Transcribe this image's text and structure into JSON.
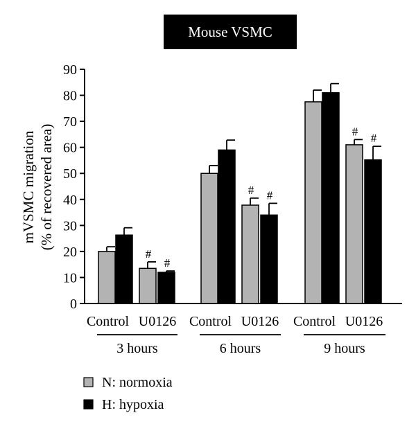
{
  "chart_data": {
    "type": "bar",
    "title": "Mouse VSMC",
    "ylabel_line1": "mVSMC migration",
    "ylabel_line2": "(% of recovered area)",
    "ylim": [
      0,
      90
    ],
    "yticks": [
      "0",
      "10",
      "20",
      "30",
      "40",
      "50",
      "60",
      "70",
      "80",
      "90"
    ],
    "groups": [
      {
        "label": "3 hours",
        "subcategories": [
          "Control",
          "U0126"
        ],
        "bars": [
          {
            "series": "N",
            "sub": "Control",
            "value": 20,
            "error": 1.8,
            "mark": ""
          },
          {
            "series": "H",
            "sub": "Control",
            "value": 26.3,
            "error": 2.8,
            "mark": ""
          },
          {
            "series": "N",
            "sub": "U0126",
            "value": 13.5,
            "error": 2.5,
            "mark": "#"
          },
          {
            "series": "H",
            "sub": "U0126",
            "value": 12,
            "error": 0.5,
            "mark": "#"
          }
        ]
      },
      {
        "label": "6 hours",
        "subcategories": [
          "Control",
          "U0126"
        ],
        "bars": [
          {
            "series": "N",
            "sub": "Control",
            "value": 50,
            "error": 3,
            "mark": ""
          },
          {
            "series": "H",
            "sub": "Control",
            "value": 59,
            "error": 3.8,
            "mark": ""
          },
          {
            "series": "N",
            "sub": "U0126",
            "value": 37.8,
            "error": 2.7,
            "mark": "#"
          },
          {
            "series": "H",
            "sub": "U0126",
            "value": 34,
            "error": 4.5,
            "mark": "#"
          }
        ]
      },
      {
        "label": "9 hours",
        "subcategories": [
          "Control",
          "U0126"
        ],
        "bars": [
          {
            "series": "N",
            "sub": "Control",
            "value": 77.5,
            "error": 4.5,
            "mark": ""
          },
          {
            "series": "H",
            "sub": "Control",
            "value": 81,
            "error": 3.5,
            "mark": ""
          },
          {
            "series": "N",
            "sub": "U0126",
            "value": 61,
            "error": 2,
            "mark": "#"
          },
          {
            "series": "H",
            "sub": "U0126",
            "value": 55.2,
            "error": 5.2,
            "mark": "#"
          }
        ]
      }
    ],
    "series": [
      {
        "key": "N",
        "name": "N: normoxia",
        "color": "#b3b3b3"
      },
      {
        "key": "H",
        "name": "H: hypoxia",
        "color": "#000000"
      }
    ],
    "grid": false,
    "legend_position": "bottom-left"
  }
}
